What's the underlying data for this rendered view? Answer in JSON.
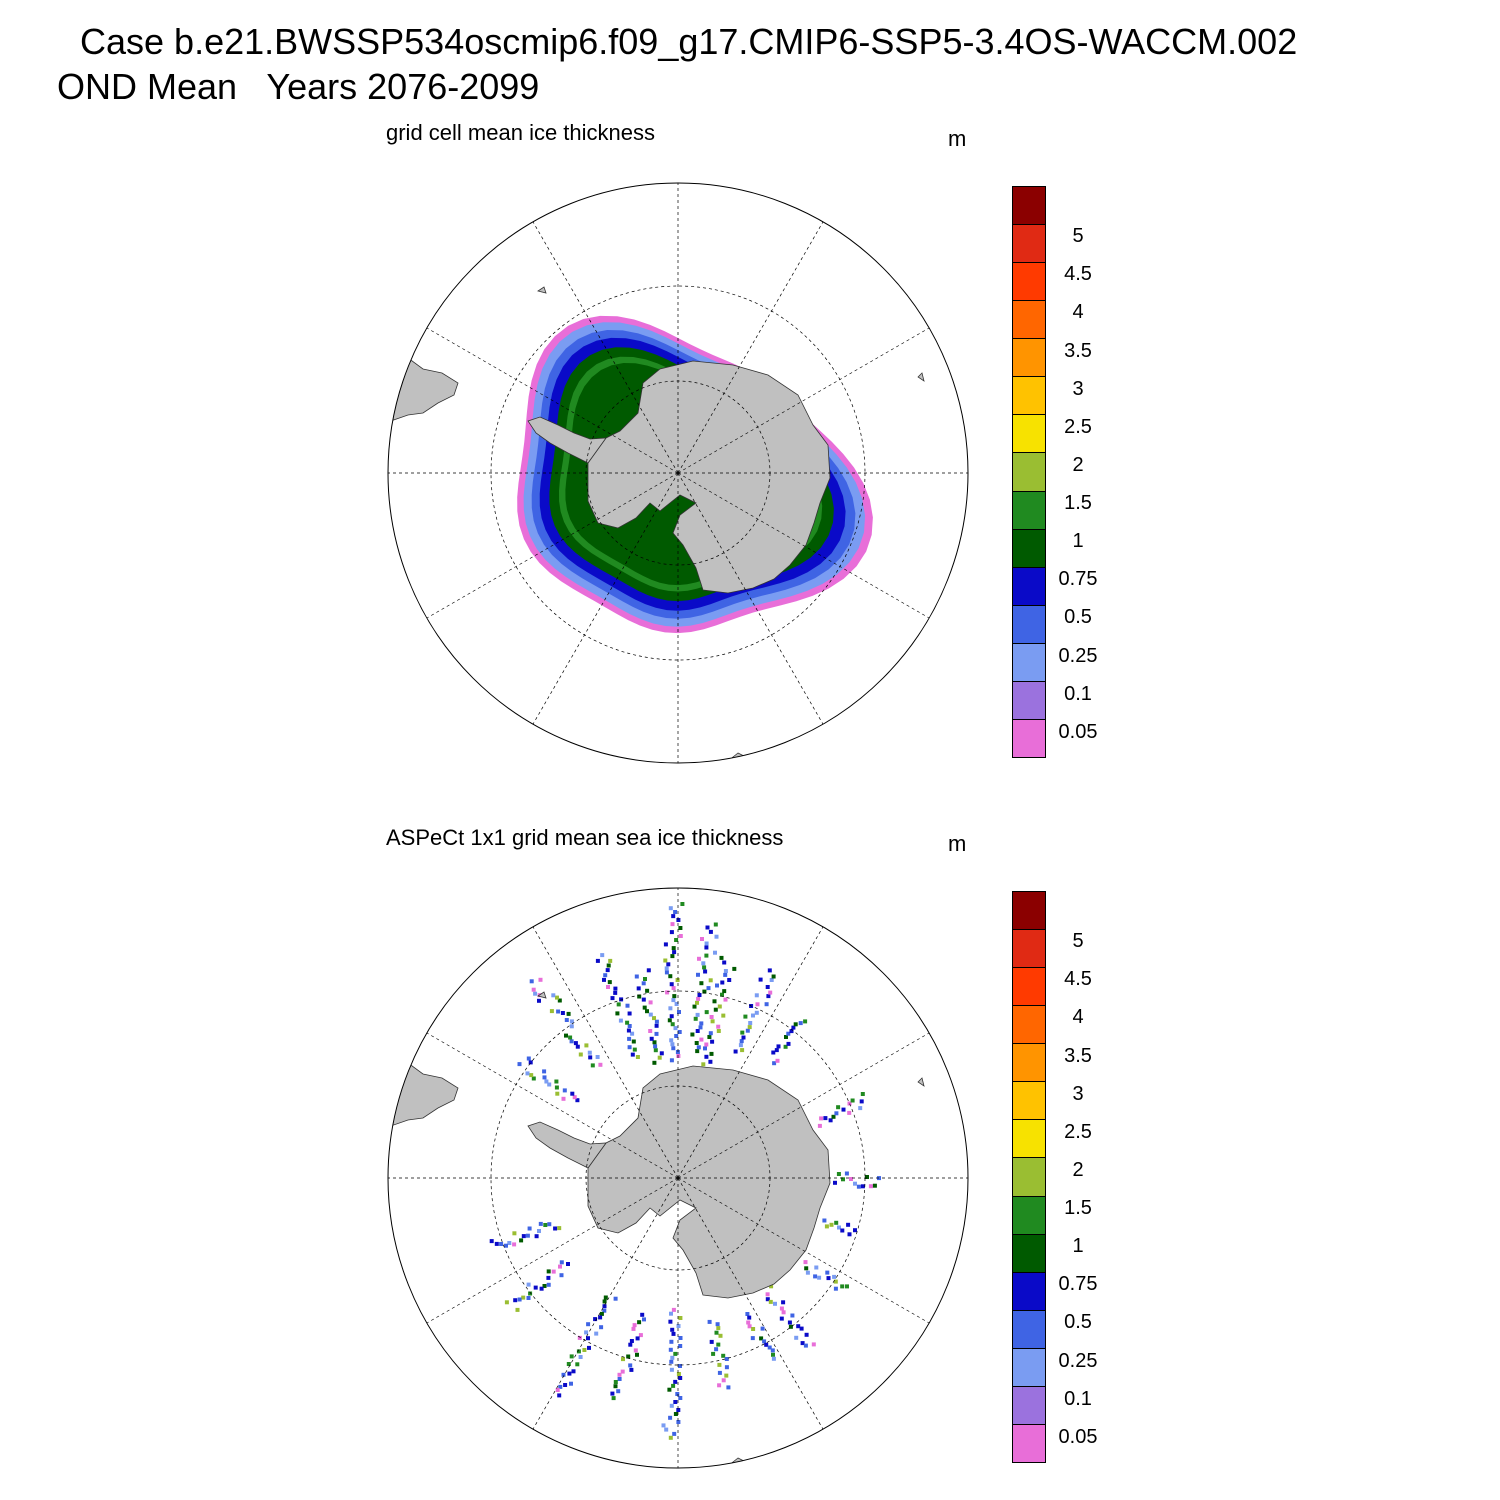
{
  "title": {
    "line1": "Case b.e21.BWSSP534oscmip6.f09_g17.CMIP6-SSP5-3.4OS-WACCM.002",
    "line2": "OND Mean   Years 2076-2099"
  },
  "colorbar": {
    "levels": [
      "0.05",
      "0.1",
      "0.25",
      "0.5",
      "0.75",
      "1",
      "1.5",
      "2",
      "2.5",
      "3",
      "3.5",
      "4",
      "4.5",
      "5"
    ],
    "colors": [
      "#e86ed8",
      "#9b72de",
      "#7a9cf2",
      "#3f64e4",
      "#0a0ac8",
      "#005a00",
      "#208a20",
      "#9abe32",
      "#f7e200",
      "#ffc200",
      "#ff9400",
      "#ff6600",
      "#ff3a00",
      "#e02a14",
      "#8b0000"
    ]
  },
  "colors": {
    "land": "#c0c0c0",
    "grid": "#000000"
  },
  "panels": [
    {
      "id": "model",
      "label": "grid cell mean ice thickness",
      "units": "m"
    },
    {
      "id": "obs",
      "label": "ASPeCt 1x1 grid mean sea ice thickness",
      "units": "m"
    }
  ]
}
